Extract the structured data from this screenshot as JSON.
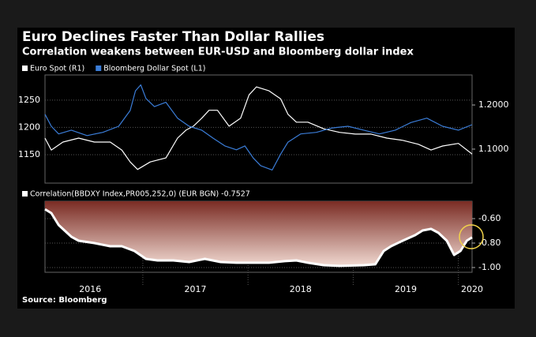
{
  "chart_data": [
    {
      "type": "line",
      "title": "Euro Declines Faster Than Dollar Rallies",
      "subtitle": "Correlation weakens between EUR-USD and Bloomberg dollar index",
      "xlim": [
        2016.07,
        2020.13
      ],
      "ylim": [
        1098,
        1296
      ],
      "yticks": [
        1150,
        1200,
        1250
      ],
      "y2lim": [
        1.023,
        1.268
      ],
      "y2ticks": [
        {
          "value": 1.1,
          "label": "1.1000"
        },
        {
          "value": 1.2,
          "label": "1.2000"
        }
      ],
      "grid": true,
      "series": [
        {
          "name": "Euro Spot (R1)",
          "color": "#ffffff",
          "axis": "y2",
          "x": [
            2016.07,
            2016.13,
            2016.24,
            2016.39,
            2016.54,
            2016.69,
            2016.8,
            2016.88,
            2016.95,
            2017.07,
            2017.22,
            2017.33,
            2017.41,
            2017.48,
            2017.56,
            2017.63,
            2017.71,
            2017.82,
            2017.93,
            2018.01,
            2018.08,
            2018.2,
            2018.31,
            2018.38,
            2018.46,
            2018.57,
            2018.72,
            2018.87,
            2019.02,
            2019.17,
            2019.32,
            2019.47,
            2019.62,
            2019.74,
            2019.85,
            2020.0,
            2020.13
          ],
          "values": [
            1.125,
            1.098,
            1.116,
            1.125,
            1.116,
            1.116,
            1.098,
            1.071,
            1.054,
            1.071,
            1.08,
            1.125,
            1.143,
            1.152,
            1.17,
            1.188,
            1.188,
            1.152,
            1.17,
            1.223,
            1.241,
            1.232,
            1.214,
            1.179,
            1.161,
            1.161,
            1.146,
            1.138,
            1.134,
            1.134,
            1.125,
            1.12,
            1.111,
            1.098,
            1.107,
            1.113,
            1.089
          ]
        },
        {
          "name": "Bloomberg Dollar Spot (L1)",
          "color": "#3b7dd8",
          "x": [
            2016.07,
            2016.13,
            2016.2,
            2016.32,
            2016.47,
            2016.62,
            2016.77,
            2016.88,
            2016.93,
            2016.98,
            2017.03,
            2017.11,
            2017.22,
            2017.33,
            2017.44,
            2017.56,
            2017.67,
            2017.78,
            2017.89,
            2017.97,
            2018.05,
            2018.12,
            2018.23,
            2018.31,
            2018.38,
            2018.5,
            2018.65,
            2018.8,
            2018.95,
            2019.1,
            2019.25,
            2019.4,
            2019.55,
            2019.7,
            2019.85,
            2020.0,
            2020.13
          ],
          "values": [
            1224,
            1202,
            1188,
            1195,
            1185,
            1191,
            1202,
            1231,
            1267,
            1278,
            1253,
            1238,
            1246,
            1217,
            1202,
            1195,
            1180,
            1166,
            1159,
            1166,
            1144,
            1130,
            1122,
            1151,
            1173,
            1188,
            1191,
            1199,
            1202,
            1195,
            1188,
            1195,
            1209,
            1217,
            1202,
            1195,
            1205
          ]
        }
      ]
    },
    {
      "type": "area",
      "xlim": [
        2016.07,
        2020.13
      ],
      "xgrid": [
        2017,
        2018,
        2019,
        2020
      ],
      "xticks": [
        {
          "value": 2016.5,
          "label": "2016"
        },
        {
          "value": 2017.5,
          "label": "2017"
        },
        {
          "value": 2018.5,
          "label": "2018"
        },
        {
          "value": 2019.5,
          "label": "2019"
        },
        {
          "value": 2020.13,
          "label": "2020"
        }
      ],
      "y2lim": [
        -1.039,
        -0.458
      ],
      "y2ticks": [
        {
          "value": -0.6,
          "label": "-0.60"
        },
        {
          "value": -0.8,
          "label": "-0.80"
        },
        {
          "value": -1,
          "label": "-1.00"
        }
      ],
      "grid": true,
      "series": [
        {
          "name": "Correlation(BBDXY Index,PR005,252,0) (EUR BGN) -0.7527",
          "color": "#ffffff",
          "axis": "y2",
          "x": [
            2016.07,
            2016.13,
            2016.2,
            2016.32,
            2016.39,
            2016.54,
            2016.69,
            2016.8,
            2016.92,
            2017.03,
            2017.14,
            2017.29,
            2017.44,
            2017.59,
            2017.74,
            2017.89,
            2018.05,
            2018.2,
            2018.35,
            2018.46,
            2018.57,
            2018.72,
            2018.87,
            2019.1,
            2019.21,
            2019.29,
            2019.36,
            2019.47,
            2019.59,
            2019.66,
            2019.74,
            2019.81,
            2019.89,
            2019.96,
            2020.02,
            2020.08,
            2020.13
          ],
          "values": [
            -0.523,
            -0.555,
            -0.652,
            -0.748,
            -0.781,
            -0.8,
            -0.826,
            -0.826,
            -0.865,
            -0.929,
            -0.942,
            -0.942,
            -0.955,
            -0.929,
            -0.955,
            -0.961,
            -0.961,
            -0.961,
            -0.948,
            -0.942,
            -0.961,
            -0.981,
            -0.987,
            -0.981,
            -0.974,
            -0.865,
            -0.826,
            -0.781,
            -0.735,
            -0.697,
            -0.684,
            -0.716,
            -0.781,
            -0.897,
            -0.865,
            -0.781,
            -0.753
          ]
        }
      ]
    }
  ],
  "source": "Source: Bloomberg"
}
